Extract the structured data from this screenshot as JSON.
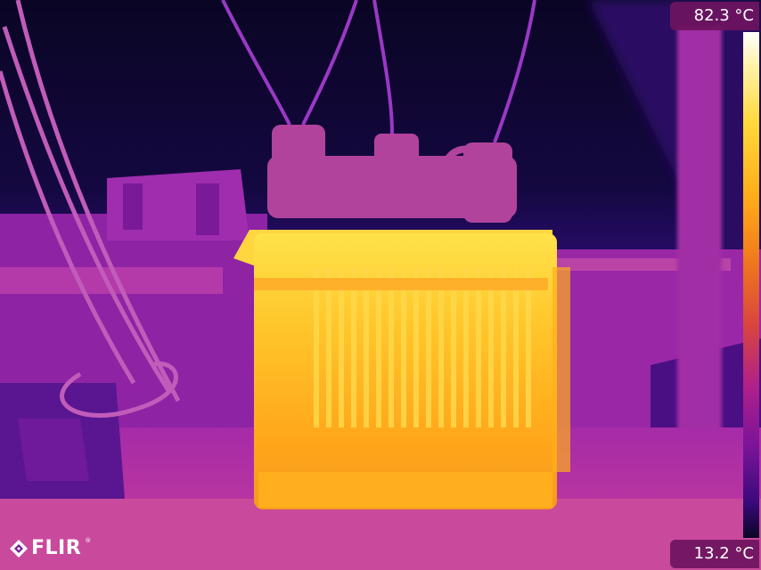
{
  "image": {
    "subject": "thermal image of a pole-mounted electrical transformer",
    "palette": "iron",
    "colors": {
      "hot": "#fff27a",
      "warm": "#ffb21e",
      "mid": "#d8453e",
      "cool": "#a028b4",
      "cold": "#0b0526"
    }
  },
  "temperature": {
    "max_label": "82.3 °C",
    "min_label": "13.2 °C",
    "max_value": 82.3,
    "min_value": 13.2,
    "unit": "°C"
  },
  "brand": {
    "label": "FLIR",
    "icon": "flir-logo-icon"
  }
}
